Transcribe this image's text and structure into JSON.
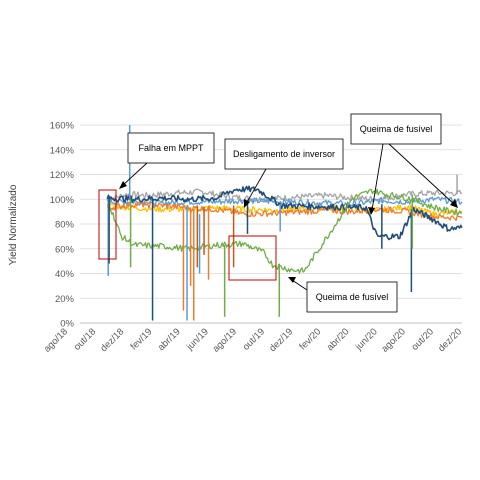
{
  "chart_data": {
    "type": "line",
    "title": "",
    "xlabel": "",
    "ylabel": "Yield Normalizado",
    "x_range": [
      "2018-08-01",
      "2020-12-01"
    ],
    "x_ticks": [
      "ago/18",
      "out/18",
      "dez/18",
      "fev/19",
      "abr/19",
      "jun/19",
      "ago/19",
      "out/19",
      "dez/19",
      "fev/20",
      "abr/20",
      "jun/20",
      "ago/20",
      "out/20",
      "dez/20"
    ],
    "y_ticks": [
      "0%",
      "20%",
      "40%",
      "60%",
      "80%",
      "100%",
      "120%",
      "140%",
      "160%"
    ],
    "ylim": [
      0,
      160
    ],
    "grid": "horizontal",
    "series": [
      {
        "color": "#a5a5a5",
        "points": [
          [
            "2018-10-01",
            100
          ],
          [
            "2018-11-15",
            104
          ],
          [
            "2019-01-01",
            103
          ],
          [
            "2019-03-01",
            105
          ],
          [
            "2019-05-01",
            106
          ],
          [
            "2019-07-01",
            102
          ],
          [
            "2019-09-01",
            100
          ],
          [
            "2019-10-25",
            101
          ],
          [
            "2020-02-01",
            103
          ],
          [
            "2020-04-01",
            101
          ],
          [
            "2020-06-01",
            100
          ],
          [
            "2020-08-01",
            104
          ],
          [
            "2020-10-01",
            105
          ],
          [
            "2020-12-01",
            105
          ]
        ]
      },
      {
        "color": "#5b9bd5",
        "points": [
          [
            "2018-10-01",
            98
          ],
          [
            "2018-12-01",
            98
          ],
          [
            "2019-02-01",
            97
          ],
          [
            "2019-04-01",
            98
          ],
          [
            "2019-06-01",
            98
          ],
          [
            "2019-08-01",
            99
          ],
          [
            "2019-10-25",
            98
          ],
          [
            "2020-02-01",
            97
          ],
          [
            "2020-04-01",
            96
          ],
          [
            "2020-06-01",
            99
          ],
          [
            "2020-08-01",
            98
          ],
          [
            "2020-10-01",
            100
          ],
          [
            "2020-12-01",
            98
          ]
        ]
      },
      {
        "color": "#ffc000",
        "points": [
          [
            "2018-10-01",
            95
          ],
          [
            "2018-12-01",
            93
          ],
          [
            "2019-02-01",
            92
          ],
          [
            "2019-04-01",
            92
          ],
          [
            "2019-06-01",
            93
          ],
          [
            "2019-08-01",
            92
          ],
          [
            "2019-10-25",
            91
          ],
          [
            "2020-02-01",
            93
          ],
          [
            "2020-04-01",
            92
          ],
          [
            "2020-06-01",
            91
          ],
          [
            "2020-08-01",
            94
          ],
          [
            "2020-10-01",
            88
          ],
          [
            "2020-12-01",
            90
          ]
        ]
      },
      {
        "color": "#ed7d31",
        "points": [
          [
            "2018-10-01",
            93
          ],
          [
            "2018-12-01",
            96
          ],
          [
            "2019-02-01",
            95
          ],
          [
            "2019-04-01",
            93
          ],
          [
            "2019-06-01",
            92
          ],
          [
            "2019-08-01",
            88
          ],
          [
            "2019-10-25",
            89
          ],
          [
            "2020-02-01",
            91
          ],
          [
            "2020-04-01",
            90
          ],
          [
            "2020-06-01",
            92
          ],
          [
            "2020-08-01",
            90
          ],
          [
            "2020-10-01",
            86
          ],
          [
            "2020-12-01",
            85
          ]
        ]
      },
      {
        "color": "#1f4e79",
        "points": [
          [
            "2018-10-01",
            101
          ],
          [
            "2018-12-01",
            100
          ],
          [
            "2019-02-01",
            101
          ],
          [
            "2019-04-01",
            100
          ],
          [
            "2019-06-01",
            101
          ],
          [
            "2019-07-15",
            108
          ],
          [
            "2019-09-01",
            108
          ],
          [
            "2019-10-25",
            95
          ],
          [
            "2020-02-01",
            94
          ],
          [
            "2020-05-01",
            93
          ],
          [
            "2020-05-25",
            70
          ],
          [
            "2020-07-15",
            70
          ],
          [
            "2020-08-15",
            92
          ],
          [
            "2020-10-01",
            83
          ],
          [
            "2020-11-01",
            76
          ],
          [
            "2020-12-01",
            77
          ]
        ]
      },
      {
        "color": "#70ad47",
        "points": [
          [
            "2018-10-01",
            100
          ],
          [
            "2018-11-01",
            70
          ],
          [
            "2018-12-01",
            63
          ],
          [
            "2019-02-01",
            62
          ],
          [
            "2019-04-01",
            60
          ],
          [
            "2019-06-01",
            63
          ],
          [
            "2019-08-01",
            64
          ],
          [
            "2019-09-15",
            57
          ],
          [
            "2019-10-05",
            47
          ],
          [
            "2019-11-15",
            43
          ],
          [
            "2019-12-15",
            42
          ],
          [
            "2020-04-01",
            101
          ],
          [
            "2020-05-15",
            107
          ],
          [
            "2020-06-15",
            104
          ],
          [
            "2020-08-15",
            100
          ],
          [
            "2020-09-15",
            95
          ],
          [
            "2020-10-25",
            91
          ],
          [
            "2020-12-01",
            89
          ]
        ]
      }
    ],
    "annotations": [
      {
        "text": "Falha em MPPT"
      },
      {
        "text": "Desligamento de inversor"
      },
      {
        "text": "Queima de fusível"
      },
      {
        "text": "Queima de fusível"
      }
    ]
  }
}
